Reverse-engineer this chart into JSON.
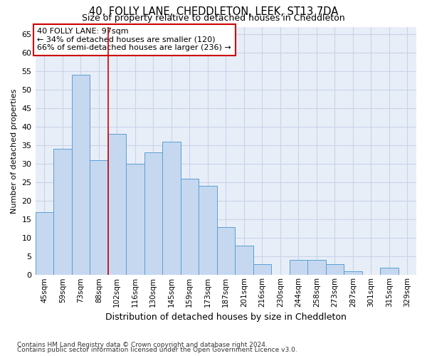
{
  "title1": "40, FOLLY LANE, CHEDDLETON, LEEK, ST13 7DA",
  "title2": "Size of property relative to detached houses in Cheddleton",
  "xlabel": "Distribution of detached houses by size in Cheddleton",
  "ylabel": "Number of detached properties",
  "categories": [
    "45sqm",
    "59sqm",
    "73sqm",
    "88sqm",
    "102sqm",
    "116sqm",
    "130sqm",
    "145sqm",
    "159sqm",
    "173sqm",
    "187sqm",
    "201sqm",
    "216sqm",
    "230sqm",
    "244sqm",
    "258sqm",
    "273sqm",
    "287sqm",
    "301sqm",
    "315sqm",
    "329sqm"
  ],
  "values": [
    17,
    34,
    54,
    31,
    38,
    30,
    33,
    36,
    26,
    24,
    13,
    8,
    3,
    0,
    4,
    4,
    3,
    1,
    0,
    2,
    0
  ],
  "bar_color": "#c5d8f0",
  "bar_edge_color": "#5a9fd4",
  "grid_color": "#c8d4e8",
  "background_color": "#e8eef8",
  "annotation_line1": "40 FOLLY LANE: 97sqm",
  "annotation_line2": "← 34% of detached houses are smaller (120)",
  "annotation_line3": "66% of semi-detached houses are larger (236) →",
  "annotation_box_color": "#ffffff",
  "annotation_box_edge_color": "#cc0000",
  "redline_x": 3.5,
  "ylim": [
    0,
    67
  ],
  "yticks": [
    0,
    5,
    10,
    15,
    20,
    25,
    30,
    35,
    40,
    45,
    50,
    55,
    60,
    65
  ],
  "footer1": "Contains HM Land Registry data © Crown copyright and database right 2024.",
  "footer2": "Contains public sector information licensed under the Open Government Licence v3.0."
}
